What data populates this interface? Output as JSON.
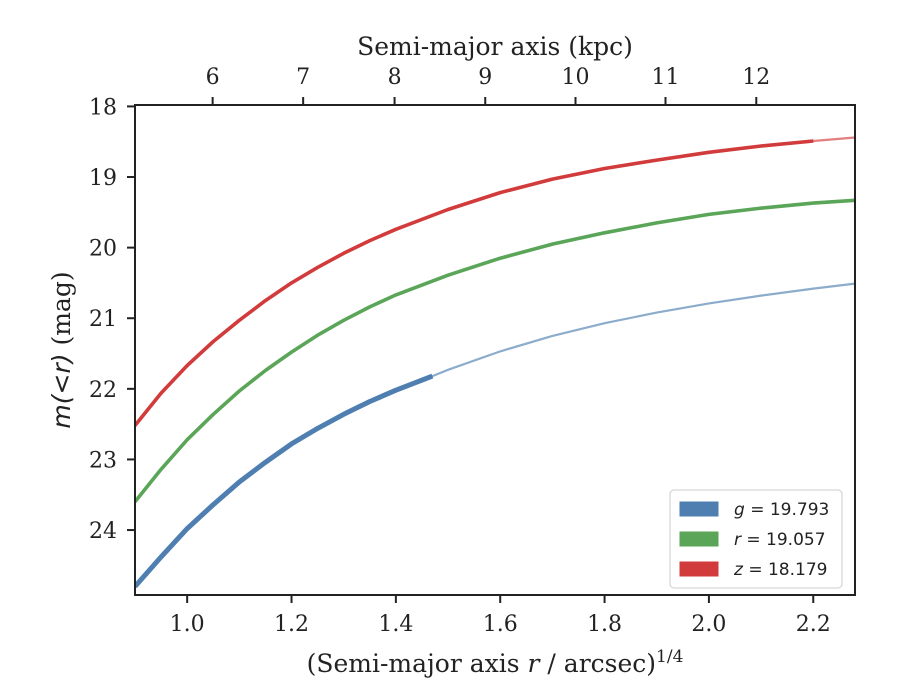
{
  "chart_data": {
    "type": "line",
    "title": "",
    "xlabel": "(Semi-major axis r / arcsec)^1/4",
    "xlabel_parts": {
      "pre": "(Semi-major axis ",
      "var": "r",
      "post": " / arcsec)",
      "sup": "1/4"
    },
    "ylabel": "m(<r) (mag)",
    "ylabel_parts": {
      "math": "m(<r)",
      "post": " (mag)"
    },
    "top_xlabel": "Semi-major axis (kpc)",
    "xlim": [
      0.9,
      2.28
    ],
    "ylim": [
      24.92,
      17.98
    ],
    "y_inverted": true,
    "x_ticks": [
      "1.0",
      "1.2",
      "1.4",
      "1.6",
      "1.8",
      "2.0",
      "2.2"
    ],
    "y_ticks": [
      "18",
      "19",
      "20",
      "21",
      "22",
      "23",
      "24"
    ],
    "top_x_ticks": [
      "6",
      "7",
      "8",
      "9",
      "10",
      "11",
      "12"
    ],
    "top_x_tick_values": [
      6,
      7,
      8,
      9,
      10,
      11,
      12
    ],
    "top_x_tick_positions": [
      1.0488,
      1.2223,
      1.3975,
      1.5713,
      1.7443,
      1.9168,
      2.0908
    ],
    "grid": false,
    "legend_position": "lower right",
    "series": [
      {
        "name": "g = 19.793",
        "legend_var": "g",
        "legend_value": "= 19.793",
        "color": "#4e7fb0",
        "thick_until": 1.47,
        "x": [
          0.9,
          0.95,
          1.0,
          1.05,
          1.1,
          1.15,
          1.2,
          1.25,
          1.3,
          1.35,
          1.4,
          1.47,
          1.5,
          1.6,
          1.7,
          1.8,
          1.9,
          2.0,
          2.1,
          2.2,
          2.28
        ],
        "y": [
          24.8,
          24.38,
          23.98,
          23.64,
          23.32,
          23.04,
          22.78,
          22.56,
          22.36,
          22.18,
          22.02,
          21.82,
          21.73,
          21.47,
          21.25,
          21.07,
          20.92,
          20.79,
          20.68,
          20.58,
          20.51
        ]
      },
      {
        "name": "r = 19.057",
        "legend_var": "r",
        "legend_value": "= 19.057",
        "color": "#5aa558",
        "thick_until": 2.28,
        "x": [
          0.9,
          0.95,
          1.0,
          1.05,
          1.1,
          1.15,
          1.2,
          1.25,
          1.3,
          1.35,
          1.4,
          1.5,
          1.6,
          1.7,
          1.8,
          1.9,
          2.0,
          2.1,
          2.2,
          2.28
        ],
        "y": [
          23.6,
          23.14,
          22.72,
          22.36,
          22.03,
          21.74,
          21.48,
          21.24,
          21.03,
          20.84,
          20.67,
          20.39,
          20.15,
          19.95,
          19.79,
          19.65,
          19.53,
          19.44,
          19.37,
          19.33
        ]
      },
      {
        "name": "z = 18.179",
        "legend_var": "z",
        "legend_value": "= 18.179",
        "color": "#d23b3b",
        "thick_until": 2.2,
        "x": [
          0.9,
          0.95,
          1.0,
          1.05,
          1.1,
          1.15,
          1.2,
          1.25,
          1.3,
          1.35,
          1.4,
          1.5,
          1.6,
          1.7,
          1.8,
          1.9,
          2.0,
          2.1,
          2.2,
          2.28
        ],
        "y": [
          22.52,
          22.06,
          21.67,
          21.33,
          21.03,
          20.75,
          20.5,
          20.28,
          20.08,
          19.9,
          19.74,
          19.46,
          19.22,
          19.03,
          18.88,
          18.76,
          18.65,
          18.56,
          18.49,
          18.44
        ]
      }
    ]
  }
}
